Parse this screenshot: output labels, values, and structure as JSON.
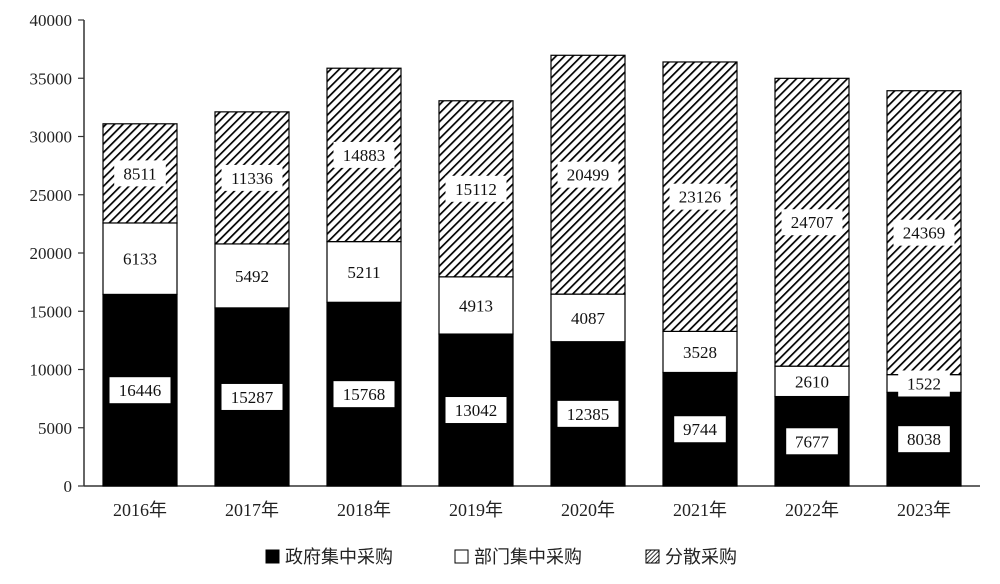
{
  "chart_data": {
    "type": "bar",
    "stacked": true,
    "categories": [
      "2016年",
      "2017年",
      "2018年",
      "2019年",
      "2020年",
      "2021年",
      "2022年",
      "2023年"
    ],
    "series": [
      {
        "name": "政府集中采购",
        "values": [
          16446,
          15287,
          15768,
          13042,
          12385,
          9744,
          7677,
          8038
        ],
        "fill": "solid-black"
      },
      {
        "name": "部门集中采购",
        "values": [
          6133,
          5492,
          5211,
          4913,
          4087,
          3528,
          2610,
          1522
        ],
        "fill": "white"
      },
      {
        "name": "分散采购",
        "values": [
          8511,
          11336,
          14883,
          15112,
          20499,
          23126,
          24707,
          24369
        ],
        "fill": "diagonal-hatch"
      }
    ],
    "ylim": [
      0,
      40000
    ],
    "yticks": [
      0,
      5000,
      10000,
      15000,
      20000,
      25000,
      30000,
      35000,
      40000
    ],
    "grid": false,
    "legend_position": "bottom-center",
    "colors": {
      "bar_dark": "#000000",
      "bar_light": "#ffffff",
      "hatch": "#000000",
      "axis": "#333333"
    }
  }
}
